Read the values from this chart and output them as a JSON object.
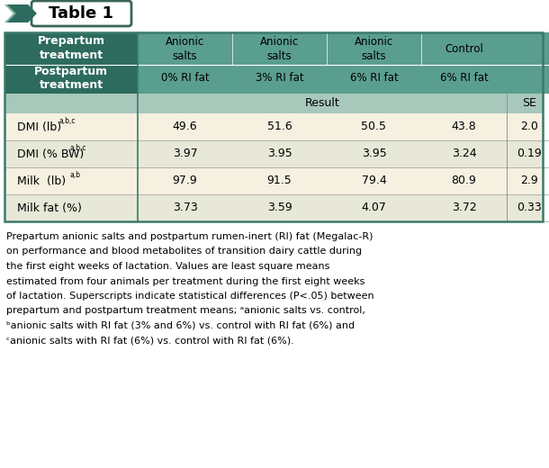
{
  "title": "Table 1",
  "header_dark_bg": "#2d6b5e",
  "header_light_bg": "#5a9e8f",
  "result_row_bg": "#a8c8bc",
  "odd_row_bg": "#f5f0e0",
  "even_row_bg": "#e8e8d8",
  "border_color": "#3a7a6a",
  "col_header_pre": [
    "Anionic\nsalts",
    "Anionic\nsalts",
    "Anionic\nsalts",
    "Control"
  ],
  "col_header_post": [
    "0% RI fat",
    "3% RI fat",
    "6% RI fat",
    "6% RI fat"
  ],
  "result_label": "Result",
  "se_label": "SE",
  "rows": [
    {
      "label": "DMI (lb)",
      "superscript": "a,b,c",
      "values": [
        "49.6",
        "51.6",
        "50.5",
        "43.8",
        "2.0"
      ]
    },
    {
      "label": "DMI (% BW)",
      "superscript": "a,b,c",
      "values": [
        "3.97",
        "3.95",
        "3.95",
        "3.24",
        "0.19"
      ]
    },
    {
      "label": "Milk  (lb)",
      "superscript": "a,b",
      "values": [
        "97.9",
        "91.5",
        "79.4",
        "80.9",
        "2.9"
      ]
    },
    {
      "label": "Milk fat (%)",
      "superscript": "",
      "values": [
        "3.73",
        "3.59",
        "4.07",
        "3.72",
        "0.33"
      ]
    }
  ],
  "caption_lines": [
    "Prepartum anionic salts and postpartum rumen-inert (RI) fat (Megalac-R)",
    "on performance and blood metabolites of transition dairy cattle during",
    "the first eight weeks of lactation. Values are least square means",
    "estimated from four animals per treatment during the first eight weeks",
    "of lactation. Superscripts indicate statistical differences (P<.05) between",
    "prepartum and postpartum treatment means; ᵃanionic salts vs. control,",
    "ᵇanionic salts with RI fat (3% and 6%) vs. control with RI fat (6%) and",
    "ᶜanionic salts with RI fat (6%) vs. control with RI fat (6%)."
  ],
  "arrow_color": "#2d6b5e",
  "arrow_light_color": "#7ab5a5"
}
